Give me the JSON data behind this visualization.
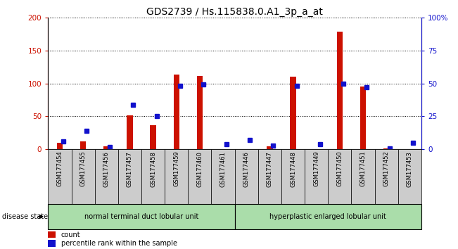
{
  "title": "GDS2739 / Hs.115838.0.A1_3p_a_at",
  "samples": [
    "GSM177454",
    "GSM177455",
    "GSM177456",
    "GSM177457",
    "GSM177458",
    "GSM177459",
    "GSM177460",
    "GSM177461",
    "GSM177446",
    "GSM177447",
    "GSM177448",
    "GSM177449",
    "GSM177450",
    "GSM177451",
    "GSM177452",
    "GSM177453"
  ],
  "counts": [
    10,
    12,
    5,
    52,
    37,
    113,
    111,
    0,
    0,
    5,
    110,
    0,
    178,
    95,
    2,
    0
  ],
  "percentiles": [
    6,
    14,
    2,
    34,
    25,
    48,
    49,
    4,
    7,
    3,
    48,
    4,
    50,
    47,
    1,
    5
  ],
  "group1_label": "normal terminal duct lobular unit",
  "group2_label": "hyperplastic enlarged lobular unit",
  "group1_count": 8,
  "group2_count": 8,
  "disease_state_label": "disease state",
  "ylim_left": [
    0,
    200
  ],
  "ylim_right": [
    0,
    100
  ],
  "yticks_left": [
    0,
    50,
    100,
    150,
    200
  ],
  "yticks_right": [
    0,
    25,
    50,
    75,
    100
  ],
  "ytick_labels_right": [
    "0",
    "25",
    "50",
    "75",
    "100%"
  ],
  "bar_color": "#cc1100",
  "dot_color": "#1111cc",
  "group_bg_color": "#aaddaa",
  "xticklabel_bg": "#cccccc",
  "legend_count_label": "count",
  "legend_percentile_label": "percentile rank within the sample",
  "title_fontsize": 10,
  "tick_fontsize": 7.5,
  "label_fontsize": 7.5
}
